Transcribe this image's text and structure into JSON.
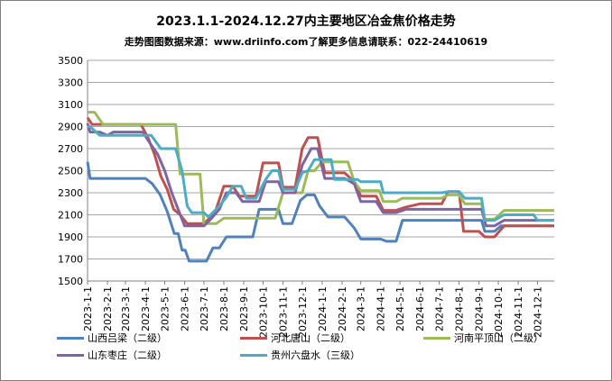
{
  "chart_data": {
    "type": "line",
    "title": "2023.1.1-2024.12.27内主要地区冶金焦价格走势",
    "subtitle": "走势图图数据来源：www.driinfo.com了解更多信息请联系：022-24410619",
    "ylim": [
      1500,
      3500
    ],
    "yticks": [
      1500,
      1700,
      1900,
      2100,
      2300,
      2500,
      2700,
      2900,
      3100,
      3300,
      3500
    ],
    "x_ticks": [
      "2023-1-1",
      "2023-2-1",
      "2023-3-1",
      "2023-4-1",
      "2023-5-1",
      "2023-6-1",
      "2023-7-1",
      "2023-8-1",
      "2023-9-1",
      "2023-10-1",
      "2023-11-1",
      "2023-12-1",
      "2024-1-1",
      "2024-2-1",
      "2024-3-1",
      "2024-4-1",
      "2024-5-1",
      "2024-6-1",
      "2024-7-1",
      "2024-8-1",
      "2024-9-1",
      "2024-10-1",
      "2024-11-1",
      "2024-12-1"
    ],
    "grid": true,
    "legend_position": "bottom",
    "series": [
      {
        "name": "山西吕梁（二级）",
        "color": "#4f81bd",
        "points": [
          [
            "2023-01-01",
            2580
          ],
          [
            "2023-01-05",
            2430
          ],
          [
            "2023-04-01",
            2430
          ],
          [
            "2023-04-12",
            2380
          ],
          [
            "2023-04-24",
            2280
          ],
          [
            "2023-05-05",
            2130
          ],
          [
            "2023-05-16",
            1930
          ],
          [
            "2023-05-22",
            1930
          ],
          [
            "2023-05-28",
            1780
          ],
          [
            "2023-06-02",
            1780
          ],
          [
            "2023-06-08",
            1680
          ],
          [
            "2023-07-05",
            1680
          ],
          [
            "2023-07-15",
            1800
          ],
          [
            "2023-07-25",
            1800
          ],
          [
            "2023-08-05",
            1900
          ],
          [
            "2023-09-15",
            1900
          ],
          [
            "2023-09-25",
            2150
          ],
          [
            "2023-10-25",
            2150
          ],
          [
            "2023-11-01",
            2020
          ],
          [
            "2023-11-15",
            2020
          ],
          [
            "2023-11-28",
            2230
          ],
          [
            "2023-12-08",
            2280
          ],
          [
            "2023-12-20",
            2280
          ],
          [
            "2023-12-28",
            2180
          ],
          [
            "2024-01-10",
            2080
          ],
          [
            "2024-02-05",
            2080
          ],
          [
            "2024-02-20",
            1980
          ],
          [
            "2024-03-01",
            1880
          ],
          [
            "2024-04-01",
            1880
          ],
          [
            "2024-04-10",
            1860
          ],
          [
            "2024-04-25",
            1860
          ],
          [
            "2024-05-05",
            2050
          ],
          [
            "2024-08-01",
            2050
          ],
          [
            "2024-08-10",
            2050
          ],
          [
            "2024-09-05",
            2050
          ],
          [
            "2024-09-10",
            1950
          ],
          [
            "2024-09-25",
            1950
          ],
          [
            "2024-10-05",
            2000
          ],
          [
            "2024-12-27",
            2000
          ]
        ]
      },
      {
        "name": "河北唐山（二级）",
        "color": "#c0504d",
        "points": [
          [
            "2023-01-01",
            2980
          ],
          [
            "2023-01-08",
            2920
          ],
          [
            "2023-03-25",
            2920
          ],
          [
            "2023-04-05",
            2800
          ],
          [
            "2023-04-15",
            2650
          ],
          [
            "2023-04-25",
            2450
          ],
          [
            "2023-05-05",
            2330
          ],
          [
            "2023-05-15",
            2150
          ],
          [
            "2023-05-25",
            2100
          ],
          [
            "2023-06-05",
            2020
          ],
          [
            "2023-07-01",
            2020
          ],
          [
            "2023-07-10",
            2070
          ],
          [
            "2023-07-20",
            2150
          ],
          [
            "2023-08-01",
            2360
          ],
          [
            "2023-08-15",
            2360
          ],
          [
            "2023-08-25",
            2270
          ],
          [
            "2023-09-20",
            2270
          ],
          [
            "2023-10-01",
            2570
          ],
          [
            "2023-10-25",
            2570
          ],
          [
            "2023-11-01",
            2350
          ],
          [
            "2023-11-20",
            2350
          ],
          [
            "2023-12-01",
            2700
          ],
          [
            "2023-12-10",
            2800
          ],
          [
            "2023-12-25",
            2800
          ],
          [
            "2024-01-05",
            2480
          ],
          [
            "2024-02-05",
            2480
          ],
          [
            "2024-02-20",
            2400
          ],
          [
            "2024-03-01",
            2270
          ],
          [
            "2024-03-25",
            2270
          ],
          [
            "2024-04-05",
            2140
          ],
          [
            "2024-04-25",
            2140
          ],
          [
            "2024-05-10",
            2170
          ],
          [
            "2024-06-01",
            2200
          ],
          [
            "2024-07-05",
            2200
          ],
          [
            "2024-07-15",
            2310
          ],
          [
            "2024-08-01",
            2310
          ],
          [
            "2024-08-08",
            1950
          ],
          [
            "2024-09-01",
            1950
          ],
          [
            "2024-09-10",
            1900
          ],
          [
            "2024-09-25",
            1900
          ],
          [
            "2024-10-10",
            2000
          ],
          [
            "2024-12-27",
            2000
          ]
        ]
      },
      {
        "name": "河南平顶山（二级）",
        "color": "#9bbb59",
        "points": [
          [
            "2023-01-01",
            3030
          ],
          [
            "2023-01-12",
            3030
          ],
          [
            "2023-01-25",
            2920
          ],
          [
            "2023-05-18",
            2920
          ],
          [
            "2023-05-25",
            2470
          ],
          [
            "2023-06-25",
            2470
          ],
          [
            "2023-07-01",
            2020
          ],
          [
            "2023-07-20",
            2020
          ],
          [
            "2023-08-01",
            2070
          ],
          [
            "2023-10-20",
            2070
          ],
          [
            "2023-11-01",
            2300
          ],
          [
            "2023-12-01",
            2300
          ],
          [
            "2023-12-10",
            2500
          ],
          [
            "2023-12-20",
            2500
          ],
          [
            "2024-01-01",
            2580
          ],
          [
            "2024-02-10",
            2580
          ],
          [
            "2024-02-20",
            2400
          ],
          [
            "2024-03-01",
            2320
          ],
          [
            "2024-03-30",
            2320
          ],
          [
            "2024-04-05",
            2220
          ],
          [
            "2024-04-25",
            2220
          ],
          [
            "2024-05-05",
            2250
          ],
          [
            "2024-07-05",
            2250
          ],
          [
            "2024-07-15",
            2280
          ],
          [
            "2024-08-01",
            2280
          ],
          [
            "2024-08-10",
            2200
          ],
          [
            "2024-09-05",
            2200
          ],
          [
            "2024-09-10",
            2060
          ],
          [
            "2024-09-25",
            2060
          ],
          [
            "2024-10-10",
            2140
          ],
          [
            "2024-12-27",
            2140
          ]
        ]
      },
      {
        "name": "山东枣庄（二级）",
        "color": "#8064a2",
        "points": [
          [
            "2023-01-01",
            2930
          ],
          [
            "2023-01-05",
            2850
          ],
          [
            "2023-01-20",
            2850
          ],
          [
            "2023-02-01",
            2820
          ],
          [
            "2023-02-10",
            2850
          ],
          [
            "2023-03-28",
            2850
          ],
          [
            "2023-04-08",
            2750
          ],
          [
            "2023-04-20",
            2650
          ],
          [
            "2023-05-01",
            2500
          ],
          [
            "2023-05-12",
            2300
          ],
          [
            "2023-05-22",
            2150
          ],
          [
            "2023-06-01",
            2000
          ],
          [
            "2023-07-01",
            2000
          ],
          [
            "2023-07-10",
            2050
          ],
          [
            "2023-07-25",
            2150
          ],
          [
            "2023-08-05",
            2300
          ],
          [
            "2023-08-20",
            2300
          ],
          [
            "2023-08-30",
            2220
          ],
          [
            "2023-09-25",
            2220
          ],
          [
            "2023-10-05",
            2400
          ],
          [
            "2023-10-25",
            2400
          ],
          [
            "2023-11-01",
            2300
          ],
          [
            "2023-11-20",
            2300
          ],
          [
            "2023-12-01",
            2550
          ],
          [
            "2023-12-15",
            2700
          ],
          [
            "2023-12-25",
            2700
          ],
          [
            "2024-01-05",
            2430
          ],
          [
            "2024-02-05",
            2430
          ],
          [
            "2024-02-20",
            2380
          ],
          [
            "2024-03-01",
            2220
          ],
          [
            "2024-03-25",
            2220
          ],
          [
            "2024-04-05",
            2120
          ],
          [
            "2024-04-25",
            2120
          ],
          [
            "2024-05-10",
            2150
          ],
          [
            "2024-09-05",
            2150
          ],
          [
            "2024-09-12",
            2000
          ],
          [
            "2024-09-25",
            2000
          ],
          [
            "2024-10-10",
            2050
          ],
          [
            "2024-12-27",
            2050
          ]
        ]
      },
      {
        "name": "贵州六盘水（三级）",
        "color": "#4bacc6",
        "points": [
          [
            "2023-01-01",
            2900
          ],
          [
            "2023-01-05",
            2900
          ],
          [
            "2023-01-20",
            2820
          ],
          [
            "2023-04-01",
            2820
          ],
          [
            "2023-04-10",
            2820
          ],
          [
            "2023-04-25",
            2700
          ],
          [
            "2023-05-18",
            2700
          ],
          [
            "2023-05-28",
            2500
          ],
          [
            "2023-06-05",
            2180
          ],
          [
            "2023-06-12",
            2120
          ],
          [
            "2023-07-01",
            2120
          ],
          [
            "2023-07-08",
            2080
          ],
          [
            "2023-07-25",
            2180
          ],
          [
            "2023-08-05",
            2260
          ],
          [
            "2023-08-15",
            2360
          ],
          [
            "2023-08-28",
            2360
          ],
          [
            "2023-09-05",
            2250
          ],
          [
            "2023-09-20",
            2250
          ],
          [
            "2023-10-05",
            2420
          ],
          [
            "2023-10-15",
            2500
          ],
          [
            "2023-10-25",
            2500
          ],
          [
            "2023-11-01",
            2330
          ],
          [
            "2023-11-20",
            2330
          ],
          [
            "2023-12-01",
            2480
          ],
          [
            "2023-12-10",
            2500
          ],
          [
            "2023-12-20",
            2600
          ],
          [
            "2024-01-15",
            2600
          ],
          [
            "2024-01-20",
            2420
          ],
          [
            "2024-02-25",
            2420
          ],
          [
            "2024-03-01",
            2400
          ],
          [
            "2024-04-01",
            2400
          ],
          [
            "2024-04-05",
            2300
          ],
          [
            "2024-07-05",
            2300
          ],
          [
            "2024-07-15",
            2310
          ],
          [
            "2024-08-01",
            2310
          ],
          [
            "2024-08-10",
            2250
          ],
          [
            "2024-09-05",
            2250
          ],
          [
            "2024-09-10",
            2050
          ],
          [
            "2024-09-25",
            2050
          ],
          [
            "2024-10-10",
            2100
          ],
          [
            "2024-11-25",
            2100
          ],
          [
            "2024-12-01",
            2050
          ],
          [
            "2024-12-27",
            2050
          ]
        ]
      }
    ]
  }
}
